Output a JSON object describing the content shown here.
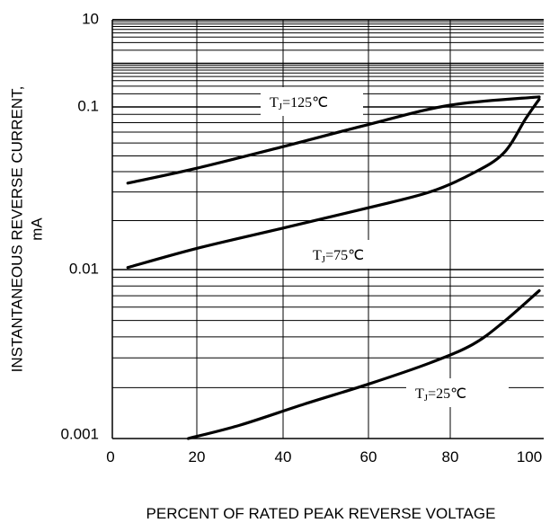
{
  "chart_data": {
    "type": "line",
    "xlabel": "PERCENT OF RATED PEAK REVERSE VOLTAGE",
    "ylabel_line1": "INSTANTANEOUS  REVERSE  CURRENT,",
    "ylabel_line2": "mA",
    "x_ticks": [
      "0",
      "20",
      "40",
      "60",
      "80",
      "100"
    ],
    "y_ticks": [
      "0.001",
      "0.01",
      "0.1",
      "10"
    ],
    "xlim": [
      0,
      100
    ],
    "ylim": [
      0.001,
      10
    ],
    "y_scale": "log",
    "grid": true,
    "series": [
      {
        "name": "TJ=125°C",
        "label_main": "T",
        "label_sub": "J",
        "label_rest": "=125℃",
        "x": [
          4,
          20,
          40,
          60,
          80,
          100
        ],
        "y": [
          0.034,
          0.042,
          0.057,
          0.078,
          0.11,
          0.17
        ]
      },
      {
        "name": "TJ=75°C",
        "label_main": "T",
        "label_sub": "J",
        "label_rest": "=75℃",
        "x": [
          4,
          20,
          40,
          60,
          75,
          85,
          92,
          97,
          100
        ],
        "y": [
          0.0103,
          0.0135,
          0.018,
          0.024,
          0.03,
          0.039,
          0.052,
          0.085,
          0.15
        ]
      },
      {
        "name": "TJ=25°C",
        "label_main": "T",
        "label_sub": "J",
        "label_rest": "=25℃",
        "x": [
          18,
          30,
          45,
          60,
          75,
          85,
          92,
          100
        ],
        "y": [
          0.001,
          0.0012,
          0.0016,
          0.0021,
          0.0028,
          0.0036,
          0.0049,
          0.0075
        ]
      }
    ]
  }
}
